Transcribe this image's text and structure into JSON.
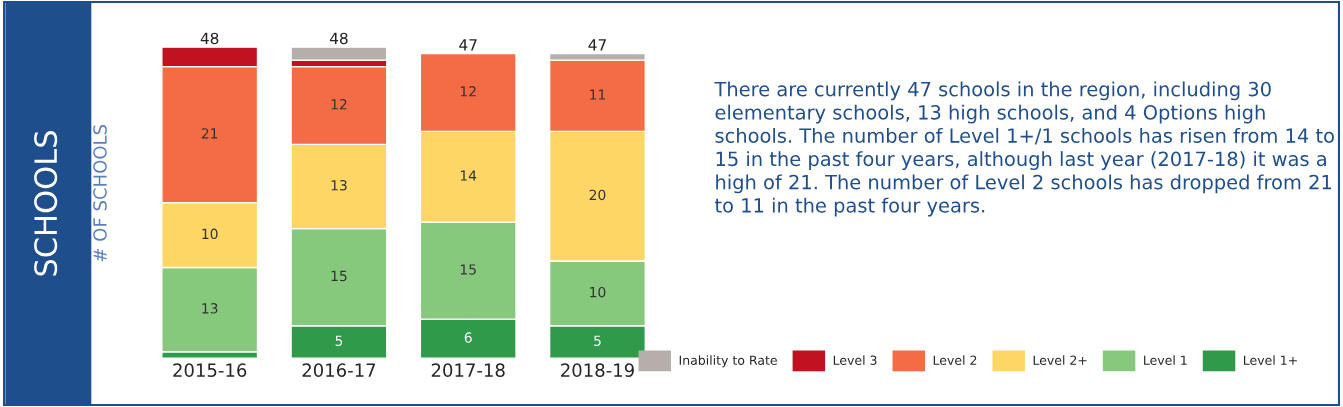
{
  "chart_data": {
    "type": "bar",
    "title": "SCHOOLS",
    "ylabel": "# OF SCHOOLS",
    "stacked": true,
    "categories": [
      "2015-16",
      "2016-17",
      "2017-18",
      "2018-19"
    ],
    "series": [
      {
        "name": "Level 1+",
        "color": "#2e9a4a",
        "values": [
          1,
          5,
          6,
          5
        ],
        "value_labels": [
          null,
          "5",
          "6",
          "5"
        ]
      },
      {
        "name": "Level 1",
        "color": "#86c97c",
        "values": [
          13,
          15,
          15,
          10
        ],
        "value_labels": [
          "13",
          "15",
          "15",
          "10"
        ]
      },
      {
        "name": "Level 2+",
        "color": "#fdd666",
        "values": [
          10,
          13,
          14,
          20
        ],
        "value_labels": [
          "10",
          "13",
          "14",
          "20"
        ]
      },
      {
        "name": "Level 2",
        "color": "#f36c45",
        "values": [
          21,
          12,
          12,
          11
        ],
        "value_labels": [
          "21",
          "12",
          "12",
          "11"
        ]
      },
      {
        "name": "Level 3",
        "color": "#c0121f",
        "values": [
          3,
          1,
          null,
          null
        ],
        "value_labels": [
          null,
          null,
          null,
          null
        ]
      },
      {
        "name": "Inability to Rate",
        "color": "#b5aeaa",
        "values": [
          null,
          2,
          null,
          1
        ],
        "value_labels": [
          null,
          null,
          null,
          null
        ]
      }
    ],
    "totals": [
      "48",
      "48",
      "47",
      "47"
    ],
    "legend": "bottom right",
    "grid": false,
    "annotations": [
      "There are currently 47 schools in the region, including 30 elementary schools, 13 high schools, and 4 Options high schools. The number of Level 1+/1 schools has risen from 14 to 15 in the past four years, although last year (2017-18) it was a high of 21. The number of Level 2 schools has dropped from 21 to 11 in the past four years."
    ]
  }
}
